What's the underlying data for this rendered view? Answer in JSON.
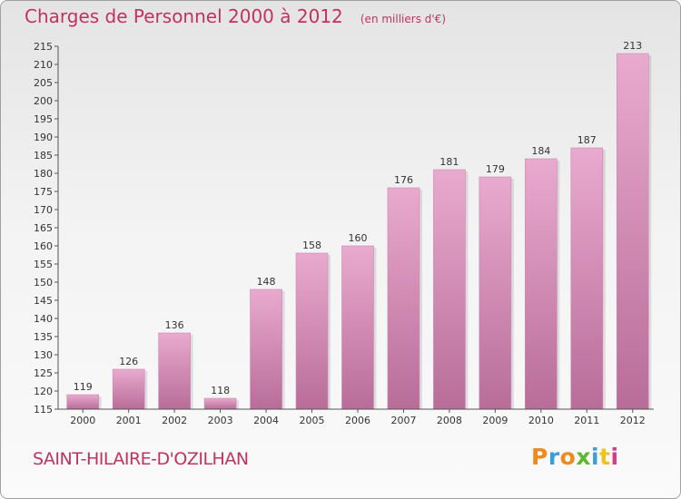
{
  "header": {
    "title": "Charges de Personnel 2000 à 2012",
    "subtitle": "(en milliers d'€)"
  },
  "footer": {
    "commune": "SAINT-HILAIRE-D'OZILHAN",
    "brand": "Proxiti"
  },
  "colors": {
    "bar_top": "#e9aacf",
    "bar_bottom": "#b86d98",
    "title": "#c2325f",
    "axis": "#555555"
  },
  "chart_data": {
    "type": "bar",
    "categories": [
      "2000",
      "2001",
      "2002",
      "2003",
      "2004",
      "2005",
      "2006",
      "2007",
      "2008",
      "2009",
      "2010",
      "2011",
      "2012"
    ],
    "values": [
      119,
      126,
      136,
      118,
      148,
      158,
      160,
      176,
      181,
      179,
      184,
      187,
      213
    ],
    "data_labels": [
      "119",
      "126",
      "136",
      "118",
      "148",
      "158",
      "160",
      "176",
      "181",
      "179",
      "184",
      "187",
      "213"
    ],
    "title": "Charges de Personnel 2000 à 2012",
    "ylim": [
      115,
      215
    ],
    "yticks": [
      "115",
      "120",
      "125",
      "130",
      "135",
      "140",
      "145",
      "150",
      "155",
      "160",
      "165",
      "170",
      "175",
      "180",
      "185",
      "190",
      "195",
      "200",
      "205",
      "210",
      "215"
    ],
    "grid": false,
    "legend": "none"
  }
}
